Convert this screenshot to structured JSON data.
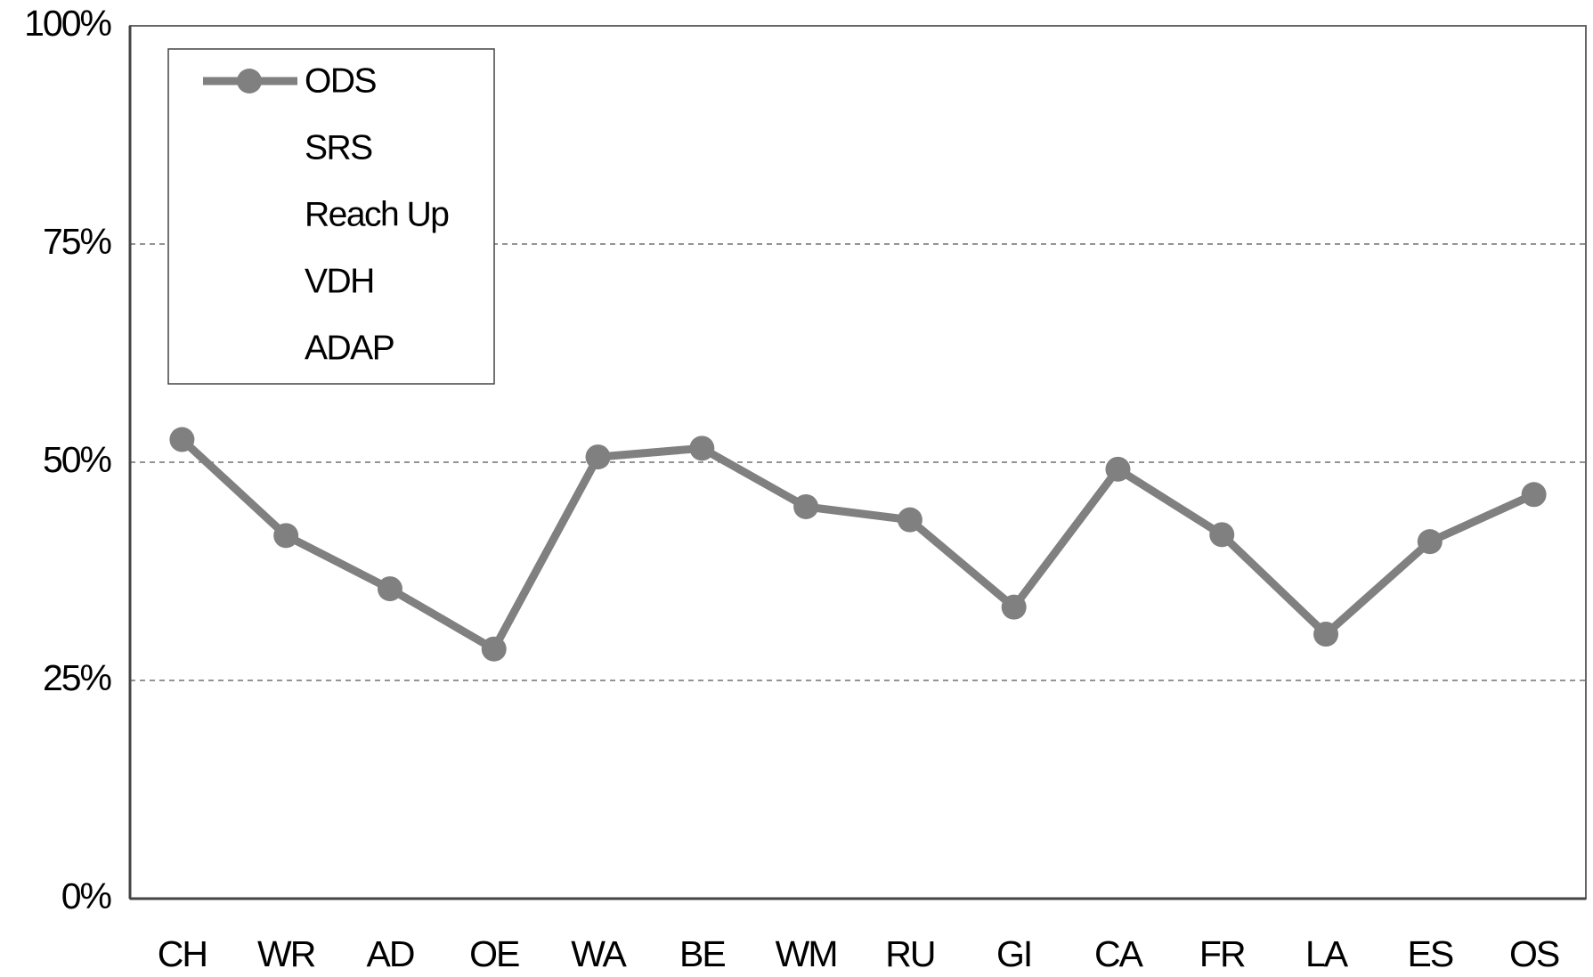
{
  "chart_data": {
    "type": "line",
    "categories": [
      "CH",
      "WR",
      "AD",
      "OE",
      "WA",
      "BE",
      "WM",
      "RU",
      "GI",
      "CA",
      "FR",
      "LA",
      "ES",
      "OS"
    ],
    "series": [
      {
        "name": "ODS",
        "color": "#808080",
        "values": [
          52.6,
          41.6,
          35.5,
          28.6,
          50.6,
          51.6,
          44.9,
          43.4,
          33.4,
          49.2,
          41.7,
          30.3,
          40.9,
          46.3
        ]
      },
      {
        "name": "SRS",
        "color": "#ffffff",
        "values": [
          null,
          null,
          null,
          null,
          null,
          null,
          null,
          null,
          null,
          null,
          null,
          null,
          null,
          null
        ]
      },
      {
        "name": "Reach Up",
        "color": "#ffffff",
        "values": [
          null,
          null,
          null,
          null,
          null,
          null,
          null,
          null,
          null,
          null,
          null,
          null,
          null,
          null
        ]
      },
      {
        "name": "VDH",
        "color": "#ffffff",
        "values": [
          null,
          null,
          null,
          null,
          null,
          null,
          null,
          null,
          null,
          null,
          null,
          null,
          null,
          null
        ]
      },
      {
        "name": "ADAP",
        "color": "#ffffff",
        "values": [
          null,
          null,
          null,
          null,
          null,
          null,
          null,
          null,
          null,
          null,
          null,
          null,
          null,
          null
        ]
      }
    ],
    "ylim": [
      0,
      100
    ],
    "yticks": [
      {
        "value": 0,
        "label": "0%"
      },
      {
        "value": 25,
        "label": "25%"
      },
      {
        "value": 50,
        "label": "50%"
      },
      {
        "value": 75,
        "label": "75%"
      },
      {
        "value": 100,
        "label": "100%"
      }
    ],
    "grid": true,
    "legend": "upper left"
  }
}
